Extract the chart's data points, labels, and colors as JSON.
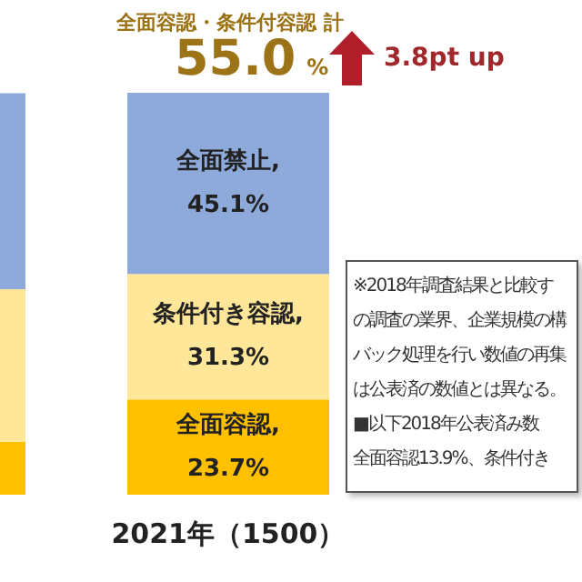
{
  "chart_data": {
    "type": "bar",
    "stacked": true,
    "categories": [
      null,
      "2021年（1500）"
    ],
    "series": [
      {
        "color": "#ffc000",
        "values": [
          13.2,
          23.7
        ],
        "value_labels": [
          null,
          "全面容認, 23.7%"
        ]
      },
      {
        "color": "#ffe699",
        "values": [
          38.0,
          31.3
        ],
        "value_labels": [
          null,
          "条件付き容認, 31.3%"
        ]
      },
      {
        "color": "#8eaadb",
        "values": [
          48.8,
          45.1
        ],
        "value_labels": [
          null,
          "全面禁止, 45.1%"
        ]
      }
    ],
    "annotations": [
      "全面容認・条件付容認 計",
      "55.0%",
      "3.8pt up",
      "※2018年調査結果と比較す",
      "の調査の業界、企業規模の構",
      "バック処理を行い数値の再集",
      "は公表済の数値とは異なる。",
      "■以下2018年公表済み数",
      "全面容認13.9%、条件付き"
    ]
  }
}
